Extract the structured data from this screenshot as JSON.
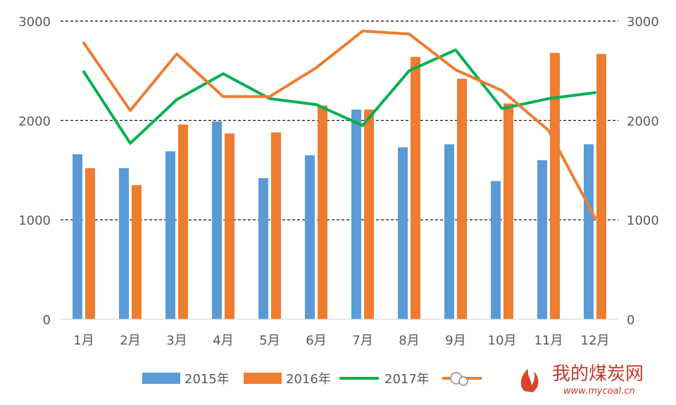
{
  "chart_data": {
    "type": "bar",
    "categories": [
      "1月",
      "2月",
      "3月",
      "4月",
      "5月",
      "6月",
      "7月",
      "8月",
      "9月",
      "10月",
      "11月",
      "12月"
    ],
    "series": [
      {
        "name": "2015年",
        "type": "bar",
        "color": "#5b9bd5",
        "values": [
          1660,
          1520,
          1690,
          1990,
          1420,
          1650,
          2110,
          1730,
          1760,
          1390,
          1600,
          1760
        ]
      },
      {
        "name": "2016年",
        "type": "bar",
        "color": "#ed7d31",
        "values": [
          1520,
          1350,
          1960,
          1870,
          1880,
          2150,
          2110,
          2640,
          2420,
          2170,
          2680,
          2670
        ]
      },
      {
        "name": "2017年",
        "type": "line",
        "color": "#00b050",
        "values": [
          2490,
          1770,
          2210,
          2470,
          2220,
          2160,
          1950,
          2500,
          2710,
          2120,
          2220,
          2280
        ]
      },
      {
        "name": "",
        "type": "line",
        "color": "#ed7d31",
        "values": [
          2780,
          2100,
          2670,
          2240,
          2240,
          2530,
          2900,
          2870,
          2510,
          2300,
          1900,
          1020
        ]
      }
    ],
    "y_left": {
      "ticks": [
        "0",
        "1000",
        "2000",
        "3000"
      ],
      "range": [
        0,
        3000
      ]
    },
    "y_right": {
      "ticks": [
        "0",
        "1000",
        "2000",
        "3000"
      ],
      "range": [
        0,
        3000
      ]
    },
    "grid": "dashed",
    "legend_position": "bottom"
  },
  "watermark": {
    "text": "我的煤炭网",
    "url": "www.mycoal.cn"
  }
}
